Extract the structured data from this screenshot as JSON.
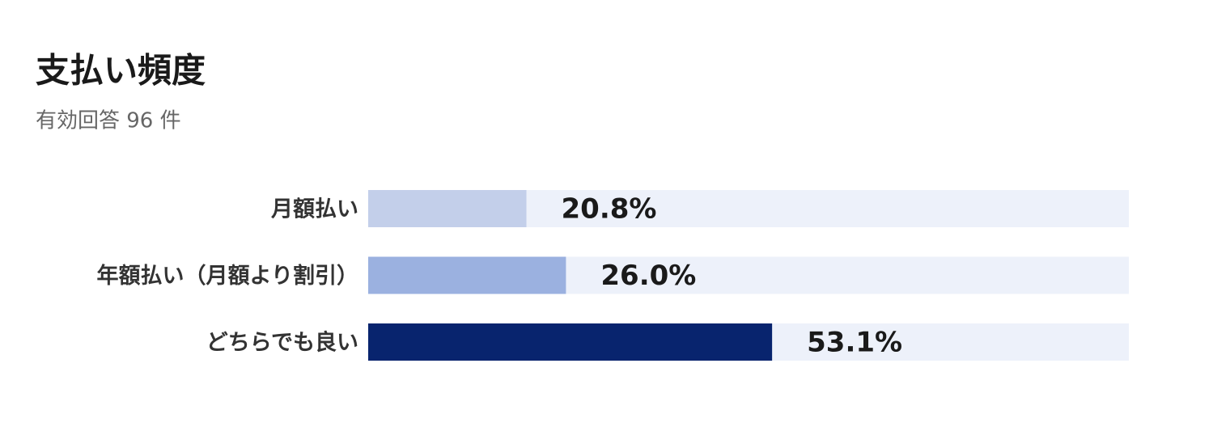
{
  "chart_data": {
    "type": "hbar",
    "title": "支払い頻度",
    "subtitle": "有効回答 96 件",
    "categories": [
      "月額払い",
      "年額払い（月額より割引）",
      "どちらでも良い"
    ],
    "values": [
      20.8,
      26.0,
      53.1
    ],
    "value_labels": [
      "20.8%",
      "26.0%",
      "53.1%"
    ],
    "colors": [
      "#c3cfea",
      "#9bb1e0",
      "#08246e"
    ],
    "track_color": "#edf1fa",
    "xlim": [
      0,
      100
    ]
  }
}
